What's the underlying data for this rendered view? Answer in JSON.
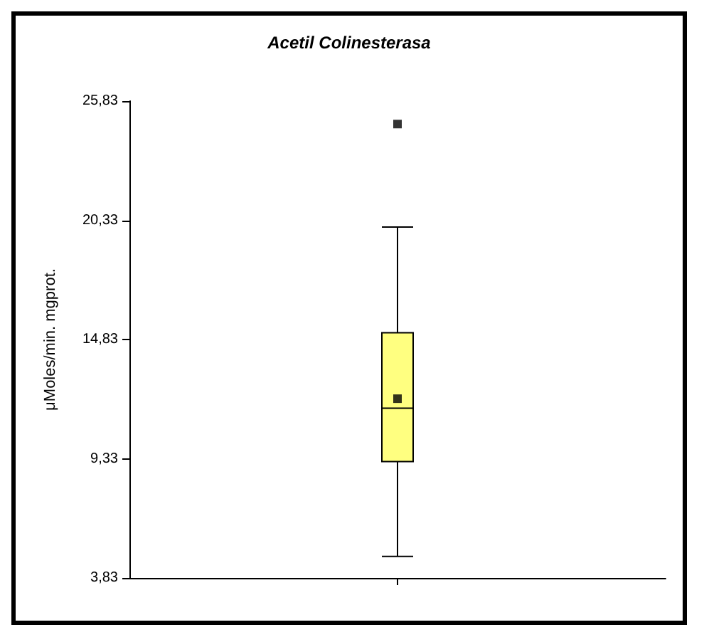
{
  "chart_data": {
    "type": "box",
    "title": "Acetil Colinesterasa",
    "ylabel": "μMoles/min. mgprot.",
    "categories": [
      null
    ],
    "series": [
      {
        "color": "#ffff80",
        "boxes": [
          {
            "low": 4.82,
            "q1": 9.2,
            "median": 11.66,
            "q3": 15.14,
            "high": 20.02,
            "mean": 12.1,
            "outliers": [
              24.77
            ]
          }
        ]
      }
    ],
    "ylim": [
      3.83,
      25.83
    ],
    "yticks": [
      {
        "value": 3.83,
        "label": "3,83"
      },
      {
        "value": 9.33,
        "label": "9,33"
      },
      {
        "value": 14.83,
        "label": "14,83"
      },
      {
        "value": 20.33,
        "label": "20,33"
      },
      {
        "value": 25.83,
        "label": "25,83"
      }
    ],
    "marker": "square"
  }
}
